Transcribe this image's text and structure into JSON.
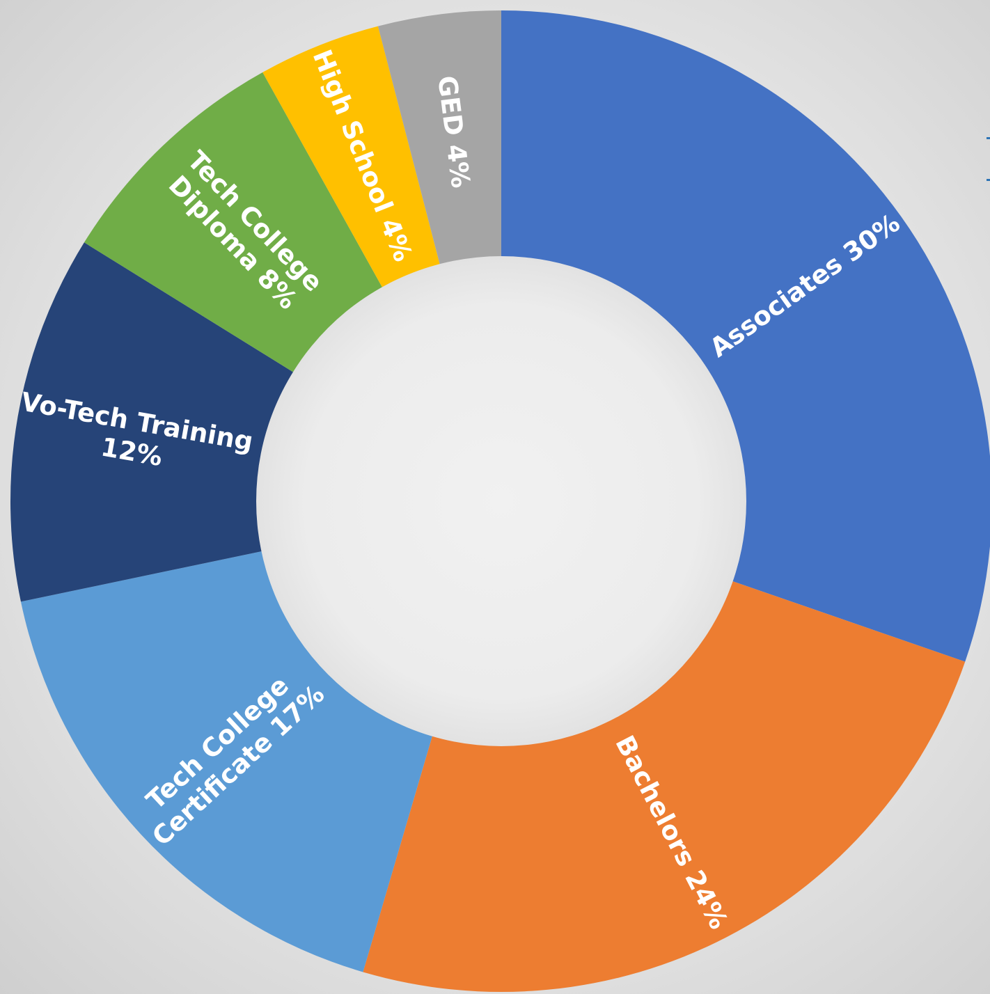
{
  "chart_data": {
    "type": "pie",
    "variant": "donut",
    "title": "",
    "legend": "none",
    "slices": [
      {
        "name": "Associates",
        "value": 30,
        "label_pct": "30%",
        "color": "#4472c4",
        "label_lines": [
          "Associates 30%"
        ]
      },
      {
        "name": "Bachelors",
        "value": 24,
        "label_pct": "24%",
        "color": "#ed7d31",
        "label_lines": [
          "Bachelors 24%"
        ]
      },
      {
        "name": "Tech College Certificate",
        "value": 17,
        "label_pct": "17%",
        "color": "#5b9bd5",
        "label_lines": [
          "Tech College",
          "Certificate 17%"
        ]
      },
      {
        "name": "Vo-Tech Training",
        "value": 12,
        "label_pct": "12%",
        "color": "#264478",
        "label_lines": [
          "Vo-Tech Training",
          "12%"
        ]
      },
      {
        "name": "Tech College Diploma",
        "value": 8,
        "label_pct": "8%",
        "color": "#70ad47",
        "label_lines": [
          "Tech College",
          "Diploma 8%"
        ]
      },
      {
        "name": "High School",
        "value": 4,
        "label_pct": "4%",
        "color": "#ffc000",
        "label_lines": [
          "High School 4%"
        ]
      },
      {
        "name": "GED",
        "value": 4,
        "label_pct": "4%",
        "color": "#a5a5a5",
        "label_lines": [
          "GED 4%"
        ]
      }
    ],
    "start_angle_deg": 0,
    "direction": "clockwise"
  }
}
